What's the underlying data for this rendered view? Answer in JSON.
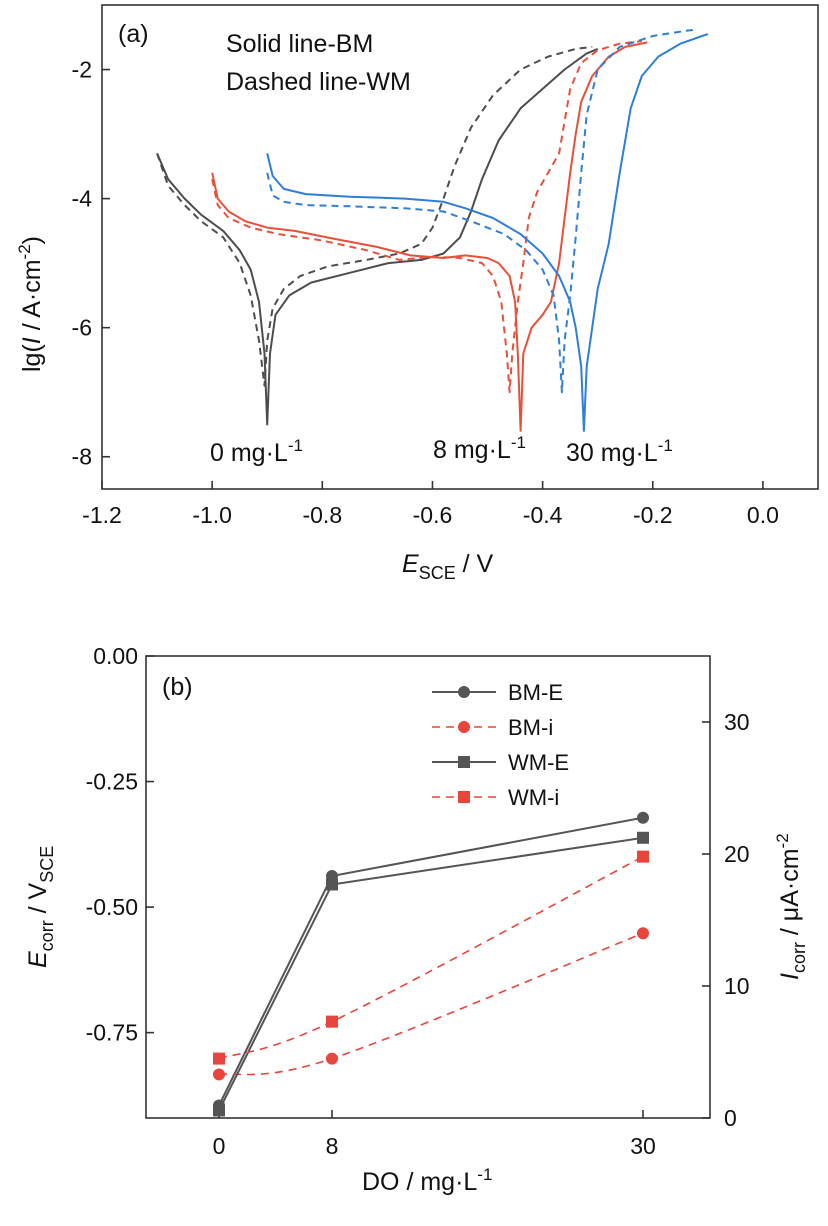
{
  "panel_a": {
    "tag": "(a)",
    "note_solid": "Solid line-BM",
    "note_dashed": "Dashed line-WM",
    "xlabel_main": "E",
    "xlabel_sub": "SCE",
    "xlabel_unit": " / V",
    "ylabel_pre": "lg(",
    "ylabel_I": "I",
    "ylabel_mid": " / A·cm",
    "ylabel_sup": "-2",
    "ylabel_post": ")",
    "ann_0_main": "0 mg·L",
    "ann_0_sup": "-1",
    "ann_8_main": "8 mg·L",
    "ann_8_sup": "-1",
    "ann_30_main": "30 mg·L",
    "ann_30_sup": "-1"
  },
  "panel_b": {
    "tag": "(b)",
    "xlabel_main": "DO / mg·L",
    "xlabel_sup": "-1",
    "ylabel_left_main": "E",
    "ylabel_left_sub": "corr",
    "ylabel_left_unit": " / V",
    "ylabel_left_unit_sub": "SCE",
    "ylabel_right_main": "I",
    "ylabel_right_sub": "corr",
    "ylabel_right_unit": " / μA·cm",
    "ylabel_right_sup": "-2",
    "legend": [
      "BM-E",
      "BM-i",
      "WM-E",
      "WM-i"
    ]
  },
  "chart_data": [
    {
      "type": "line",
      "xlim": [
        -1.2,
        0.1
      ],
      "ylim": [
        -8.5,
        -1.0
      ],
      "xticks": [
        "-1.2",
        "-1.0",
        "-0.8",
        "-0.6",
        "-0.4",
        "-0.2",
        "0.0"
      ],
      "yticks": [
        "-8",
        "-6",
        "-4",
        "-2"
      ],
      "colors": {
        "0": "#4d4d4d",
        "8": "#e8503a",
        "30": "#2f7ed8"
      },
      "series": [
        {
          "do": "0",
          "style": "solid",
          "points": [
            [
              -1.1,
              -3.3
            ],
            [
              -1.08,
              -3.7
            ],
            [
              -1.05,
              -4.0
            ],
            [
              -1.02,
              -4.25
            ],
            [
              -0.98,
              -4.5
            ],
            [
              -0.95,
              -4.8
            ],
            [
              -0.93,
              -5.1
            ],
            [
              -0.915,
              -5.6
            ],
            [
              -0.905,
              -6.4
            ],
            [
              -0.9,
              -7.5
            ],
            [
              -0.895,
              -6.4
            ],
            [
              -0.885,
              -5.8
            ],
            [
              -0.86,
              -5.5
            ],
            [
              -0.82,
              -5.3
            ],
            [
              -0.75,
              -5.15
            ],
            [
              -0.68,
              -5.0
            ],
            [
              -0.62,
              -4.95
            ],
            [
              -0.58,
              -4.85
            ],
            [
              -0.55,
              -4.6
            ],
            [
              -0.53,
              -4.2
            ],
            [
              -0.51,
              -3.7
            ],
            [
              -0.48,
              -3.1
            ],
            [
              -0.44,
              -2.6
            ],
            [
              -0.4,
              -2.3
            ],
            [
              -0.36,
              -2.0
            ],
            [
              -0.32,
              -1.75
            ],
            [
              -0.3,
              -1.68
            ]
          ]
        },
        {
          "do": "0",
          "style": "dashed",
          "points": [
            [
              -1.1,
              -3.3
            ],
            [
              -1.08,
              -3.8
            ],
            [
              -1.05,
              -4.1
            ],
            [
              -1.02,
              -4.35
            ],
            [
              -0.98,
              -4.6
            ],
            [
              -0.95,
              -5.0
            ],
            [
              -0.93,
              -5.5
            ],
            [
              -0.915,
              -6.2
            ],
            [
              -0.905,
              -6.9
            ],
            [
              -0.9,
              -6.2
            ],
            [
              -0.89,
              -5.7
            ],
            [
              -0.87,
              -5.4
            ],
            [
              -0.84,
              -5.2
            ],
            [
              -0.79,
              -5.05
            ],
            [
              -0.72,
              -4.95
            ],
            [
              -0.66,
              -4.85
            ],
            [
              -0.62,
              -4.7
            ],
            [
              -0.6,
              -4.45
            ],
            [
              -0.58,
              -4.0
            ],
            [
              -0.56,
              -3.5
            ],
            [
              -0.53,
              -2.9
            ],
            [
              -0.49,
              -2.4
            ],
            [
              -0.44,
              -2.0
            ],
            [
              -0.39,
              -1.8
            ],
            [
              -0.34,
              -1.68
            ],
            [
              -0.31,
              -1.65
            ]
          ]
        },
        {
          "do": "8",
          "style": "solid",
          "points": [
            [
              -1.0,
              -3.6
            ],
            [
              -0.99,
              -4.0
            ],
            [
              -0.97,
              -4.2
            ],
            [
              -0.94,
              -4.35
            ],
            [
              -0.9,
              -4.45
            ],
            [
              -0.85,
              -4.5
            ],
            [
              -0.78,
              -4.62
            ],
            [
              -0.7,
              -4.75
            ],
            [
              -0.64,
              -4.88
            ],
            [
              -0.58,
              -4.92
            ],
            [
              -0.54,
              -4.88
            ],
            [
              -0.5,
              -4.92
            ],
            [
              -0.48,
              -5.0
            ],
            [
              -0.46,
              -5.2
            ],
            [
              -0.45,
              -5.6
            ],
            [
              -0.445,
              -6.4
            ],
            [
              -0.44,
              -7.6
            ],
            [
              -0.435,
              -6.4
            ],
            [
              -0.42,
              -6.0
            ],
            [
              -0.4,
              -5.8
            ],
            [
              -0.385,
              -5.6
            ],
            [
              -0.37,
              -5.0
            ],
            [
              -0.36,
              -4.3
            ],
            [
              -0.35,
              -3.6
            ],
            [
              -0.34,
              -3.0
            ],
            [
              -0.33,
              -2.5
            ],
            [
              -0.31,
              -2.1
            ],
            [
              -0.28,
              -1.8
            ],
            [
              -0.25,
              -1.65
            ],
            [
              -0.21,
              -1.58
            ]
          ]
        },
        {
          "do": "8",
          "style": "dashed",
          "points": [
            [
              -1.0,
              -3.7
            ],
            [
              -0.99,
              -4.1
            ],
            [
              -0.97,
              -4.3
            ],
            [
              -0.93,
              -4.45
            ],
            [
              -0.88,
              -4.55
            ],
            [
              -0.8,
              -4.65
            ],
            [
              -0.72,
              -4.8
            ],
            [
              -0.66,
              -4.95
            ],
            [
              -0.6,
              -4.9
            ],
            [
              -0.55,
              -4.92
            ],
            [
              -0.51,
              -5.0
            ],
            [
              -0.49,
              -5.2
            ],
            [
              -0.475,
              -5.6
            ],
            [
              -0.465,
              -6.4
            ],
            [
              -0.46,
              -7.0
            ],
            [
              -0.455,
              -6.4
            ],
            [
              -0.445,
              -5.6
            ],
            [
              -0.435,
              -5.0
            ],
            [
              -0.425,
              -4.3
            ],
            [
              -0.41,
              -3.9
            ],
            [
              -0.39,
              -3.6
            ],
            [
              -0.37,
              -3.3
            ],
            [
              -0.36,
              -2.8
            ],
            [
              -0.35,
              -2.3
            ],
            [
              -0.33,
              -1.9
            ],
            [
              -0.3,
              -1.7
            ],
            [
              -0.26,
              -1.6
            ],
            [
              -0.22,
              -1.56
            ]
          ]
        },
        {
          "do": "30",
          "style": "solid",
          "points": [
            [
              -0.9,
              -3.3
            ],
            [
              -0.89,
              -3.65
            ],
            [
              -0.87,
              -3.85
            ],
            [
              -0.83,
              -3.93
            ],
            [
              -0.75,
              -3.97
            ],
            [
              -0.65,
              -4.0
            ],
            [
              -0.58,
              -4.05
            ],
            [
              -0.54,
              -4.15
            ],
            [
              -0.49,
              -4.3
            ],
            [
              -0.44,
              -4.55
            ],
            [
              -0.4,
              -4.85
            ],
            [
              -0.37,
              -5.2
            ],
            [
              -0.35,
              -5.6
            ],
            [
              -0.34,
              -6.0
            ],
            [
              -0.33,
              -6.6
            ],
            [
              -0.325,
              -7.6
            ],
            [
              -0.32,
              -6.6
            ],
            [
              -0.31,
              -6.0
            ],
            [
              -0.3,
              -5.4
            ],
            [
              -0.28,
              -4.7
            ],
            [
              -0.26,
              -3.6
            ],
            [
              -0.24,
              -2.6
            ],
            [
              -0.22,
              -2.1
            ],
            [
              -0.19,
              -1.8
            ],
            [
              -0.15,
              -1.6
            ],
            [
              -0.1,
              -1.45
            ]
          ]
        },
        {
          "do": "30",
          "style": "dashed",
          "points": [
            [
              -0.9,
              -3.6
            ],
            [
              -0.89,
              -3.95
            ],
            [
              -0.87,
              -4.05
            ],
            [
              -0.83,
              -4.1
            ],
            [
              -0.75,
              -4.12
            ],
            [
              -0.65,
              -4.15
            ],
            [
              -0.58,
              -4.2
            ],
            [
              -0.53,
              -4.35
            ],
            [
              -0.47,
              -4.55
            ],
            [
              -0.43,
              -4.8
            ],
            [
              -0.4,
              -5.1
            ],
            [
              -0.38,
              -5.5
            ],
            [
              -0.37,
              -6.2
            ],
            [
              -0.365,
              -7.0
            ],
            [
              -0.36,
              -6.2
            ],
            [
              -0.35,
              -5.5
            ],
            [
              -0.34,
              -4.6
            ],
            [
              -0.33,
              -3.6
            ],
            [
              -0.32,
              -2.7
            ],
            [
              -0.3,
              -2.0
            ],
            [
              -0.26,
              -1.65
            ],
            [
              -0.2,
              -1.48
            ],
            [
              -0.14,
              -1.4
            ],
            [
              -0.12,
              -1.38
            ]
          ]
        }
      ]
    },
    {
      "type": "line",
      "categories": [
        "0",
        "8",
        "30"
      ],
      "ylim_left": [
        -0.92,
        0.0
      ],
      "ylim_right": [
        0,
        35
      ],
      "yticks_left": [
        "0.00",
        "-0.25",
        "-0.50",
        "-0.75"
      ],
      "yticks_right": [
        "0",
        "10",
        "20",
        "30"
      ],
      "series": [
        {
          "name": "BM-E",
          "axis": "left",
          "marker": "circle",
          "style": "solid",
          "color": "#555555",
          "values": [
            -0.895,
            -0.438,
            -0.322
          ]
        },
        {
          "name": "BM-i",
          "axis": "right",
          "marker": "circle",
          "style": "dashed",
          "color": "#e8453c",
          "values": [
            3.3,
            4.5,
            14.0
          ]
        },
        {
          "name": "WM-E",
          "axis": "left",
          "marker": "square",
          "style": "solid",
          "color": "#555555",
          "values": [
            -0.905,
            -0.455,
            -0.362
          ]
        },
        {
          "name": "WM-i",
          "axis": "right",
          "marker": "square",
          "style": "dashed",
          "color": "#e8453c",
          "values": [
            4.5,
            7.3,
            19.8
          ]
        }
      ]
    }
  ]
}
